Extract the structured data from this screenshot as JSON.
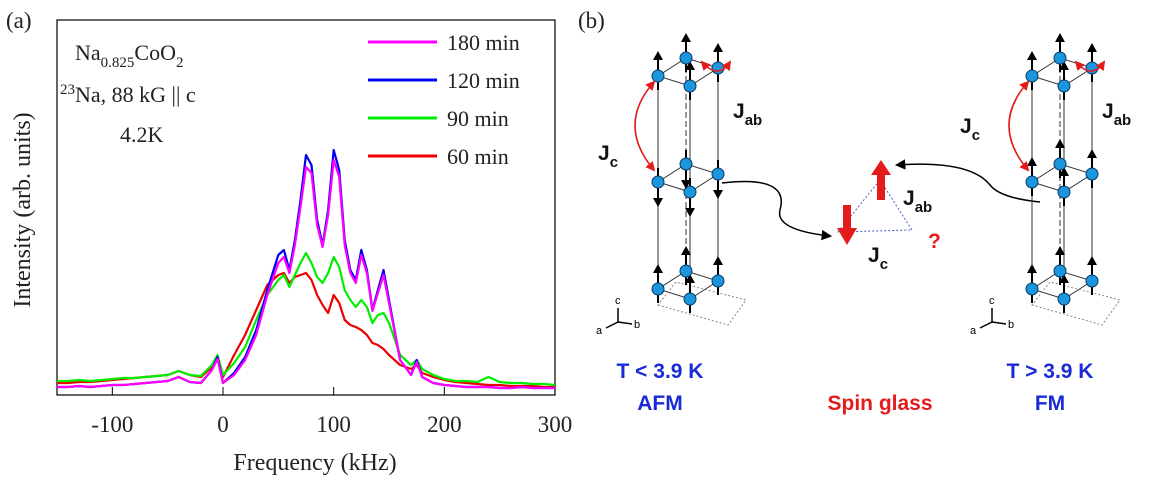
{
  "chart_data": {
    "type": "line",
    "panel_label": "(a)",
    "xlabel": "Frequency (kHz)",
    "ylabel": "Intensity (arb. units)",
    "annotations": [
      [
        "Na",
        "0.825",
        "CoO",
        "2"
      ],
      [
        "23",
        "Na, 88 kG || c"
      ],
      [
        "4.2K"
      ]
    ],
    "x": [
      -150,
      -140,
      -130,
      -120,
      -110,
      -100,
      -90,
      -80,
      -70,
      -60,
      -50,
      -40,
      -30,
      -20,
      -10,
      -5,
      0,
      10,
      20,
      30,
      40,
      50,
      55,
      60,
      65,
      70,
      75,
      80,
      85,
      90,
      95,
      100,
      105,
      110,
      115,
      120,
      125,
      130,
      135,
      140,
      145,
      150,
      160,
      170,
      175,
      180,
      190,
      200,
      210,
      220,
      230,
      240,
      250,
      260,
      270,
      280,
      290,
      300
    ],
    "series": [
      {
        "name": "180 min",
        "color": "#ff00ff",
        "values": [
          8,
          8,
          9,
          8,
          9,
          10,
          10,
          11,
          12,
          13,
          14,
          18,
          13,
          12,
          25,
          36,
          12,
          20,
          35,
          60,
          100,
          132,
          138,
          122,
          150,
          188,
          228,
          222,
          170,
          148,
          180,
          235,
          218,
          150,
          122,
          112,
          140,
          122,
          84,
          102,
          120,
          92,
          35,
          20,
          33,
          18,
          12,
          10,
          9,
          8,
          8,
          8,
          7,
          7,
          8,
          7,
          7,
          7
        ]
      },
      {
        "name": "120 min",
        "color": "#0000ee",
        "values": [
          8,
          8,
          9,
          8,
          9,
          10,
          10,
          11,
          12,
          13,
          14,
          18,
          13,
          12,
          25,
          38,
          12,
          22,
          38,
          65,
          105,
          140,
          145,
          125,
          155,
          195,
          240,
          230,
          175,
          150,
          185,
          245,
          225,
          155,
          125,
          115,
          145,
          125,
          85,
          105,
          125,
          95,
          35,
          20,
          35,
          18,
          12,
          10,
          9,
          8,
          8,
          8,
          7,
          7,
          8,
          7,
          7,
          7
        ]
      },
      {
        "name": "90 min",
        "color": "#00ee00",
        "values": [
          14,
          14,
          15,
          14,
          15,
          16,
          17,
          17,
          18,
          19,
          20,
          24,
          20,
          19,
          30,
          40,
          20,
          32,
          48,
          75,
          100,
          115,
          120,
          108,
          120,
          132,
          142,
          132,
          118,
          112,
          122,
          138,
          128,
          105,
          95,
          88,
          95,
          88,
          72,
          80,
          82,
          72,
          40,
          30,
          35,
          26,
          20,
          16,
          14,
          14,
          13,
          18,
          13,
          12,
          12,
          11,
          11,
          10
        ]
      },
      {
        "name": "60 min",
        "color": "#ee0000",
        "values": [
          12,
          12,
          13,
          13,
          14,
          15,
          16,
          17,
          18,
          19,
          20,
          24,
          20,
          18,
          28,
          36,
          18,
          40,
          60,
          85,
          110,
          120,
          122,
          112,
          118,
          120,
          122,
          115,
          100,
          90,
          82,
          100,
          92,
          75,
          70,
          68,
          65,
          60,
          52,
          50,
          46,
          40,
          30,
          26,
          30,
          22,
          18,
          15,
          13,
          12,
          11,
          10,
          10,
          9,
          9,
          9,
          8,
          8
        ]
      }
    ],
    "xlim": [
      -150,
      300
    ],
    "xticks": [
      -100,
      0,
      100,
      200,
      300
    ],
    "ylim": [
      0,
      375
    ],
    "legend": "upper right"
  },
  "diagram": {
    "label": "(b)",
    "left": {
      "jc": [
        "J",
        "c"
      ],
      "jab": [
        "J",
        "ab"
      ],
      "temp": "T < 3.9 K",
      "phase": "AFM",
      "axes": [
        "a",
        "b",
        "c"
      ]
    },
    "middle": {
      "jab": [
        "J",
        "ab"
      ],
      "jc": [
        "J",
        "c"
      ],
      "question": "?",
      "phase": "Spin glass"
    },
    "right": {
      "jc": [
        "J",
        "c"
      ],
      "jab": [
        "J",
        "ab"
      ],
      "temp": "T > 3.9 K",
      "phase": "FM",
      "axes": [
        "a",
        "b",
        "c"
      ]
    }
  }
}
